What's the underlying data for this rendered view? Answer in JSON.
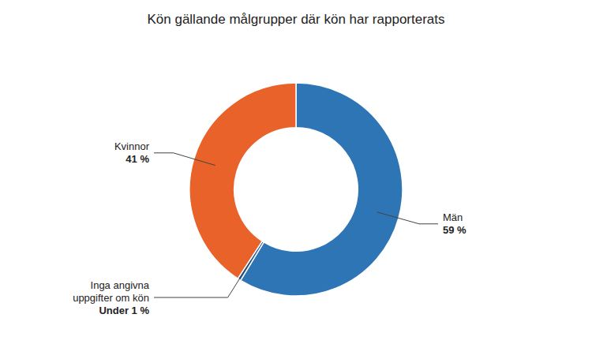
{
  "chart_data": {
    "type": "donut",
    "title": "Kön gällande målgrupper där kön har rapporterats",
    "categories": [
      "Män",
      "Inga angivna\nuppgifter om kön",
      "Kvinnor"
    ],
    "values": [
      59,
      0.5,
      41
    ],
    "value_labels": [
      "59 %",
      "Under 1 %",
      "41 %"
    ],
    "data_labels": true,
    "colors": [
      "#2E75B6",
      "#1A5E9E",
      "#E8622A"
    ]
  }
}
